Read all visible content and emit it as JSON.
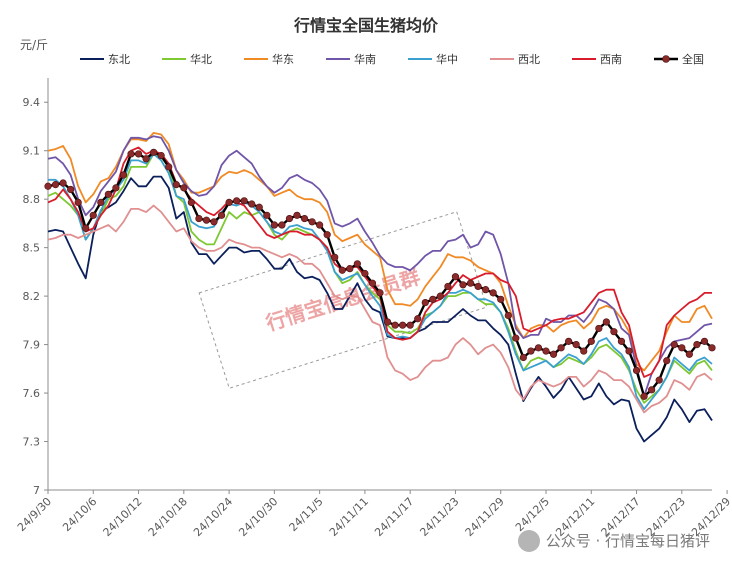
{
  "chart_data": {
    "type": "line",
    "title": "行情宝全国生猪均价",
    "ylabel": "元/斤",
    "ylim": [
      7.0,
      9.55
    ],
    "yticks": [
      7,
      7.3,
      7.6,
      7.9,
      8.2,
      8.5,
      8.8,
      9.1,
      9.4
    ],
    "xticks": [
      "24/9/30",
      "24/10/6",
      "24/10/12",
      "24/10/18",
      "24/10/24",
      "24/10/30",
      "24/11/5",
      "24/11/11",
      "24/11/17",
      "24/11/23",
      "24/11/29",
      "24/12/5",
      "24/12/11",
      "24/12/17",
      "24/12/23",
      "24/12/29"
    ],
    "x_start": "24/9/30",
    "legend_position": "top",
    "grid": false,
    "series": [
      {
        "name": "东北",
        "color": "#0b1f5c",
        "values": [
          8.6,
          8.61,
          8.6,
          8.5,
          8.4,
          8.31,
          8.58,
          8.73,
          8.75,
          8.78,
          8.85,
          8.93,
          8.88,
          8.88,
          8.94,
          8.94,
          8.87,
          8.68,
          8.72,
          8.53,
          8.46,
          8.46,
          8.4,
          8.45,
          8.5,
          8.5,
          8.47,
          8.48,
          8.48,
          8.43,
          8.37,
          8.37,
          8.43,
          8.35,
          8.31,
          8.32,
          8.3,
          8.22,
          8.12,
          8.12,
          8.2,
          8.28,
          8.18,
          8.12,
          8.1,
          7.95,
          7.94,
          7.94,
          7.94,
          7.98,
          8.0,
          8.04,
          8.04,
          8.04,
          8.08,
          8.12,
          8.08,
          8.05,
          8.05,
          8.0,
          7.96,
          7.9,
          7.72,
          7.55,
          7.63,
          7.7,
          7.64,
          7.57,
          7.62,
          7.7,
          7.63,
          7.56,
          7.58,
          7.66,
          7.58,
          7.53,
          7.56,
          7.55,
          7.38,
          7.3,
          7.34,
          7.38,
          7.45,
          7.56,
          7.5,
          7.42,
          7.49,
          7.5,
          7.43
        ]
      },
      {
        "name": "华北",
        "color": "#7ec832",
        "values": [
          8.82,
          8.84,
          8.8,
          8.76,
          8.7,
          8.55,
          8.62,
          8.7,
          8.8,
          8.82,
          8.88,
          9.0,
          9.0,
          9.0,
          9.08,
          9.06,
          9.0,
          8.82,
          8.78,
          8.6,
          8.55,
          8.52,
          8.52,
          8.62,
          8.72,
          8.68,
          8.72,
          8.7,
          8.72,
          8.66,
          8.58,
          8.55,
          8.6,
          8.62,
          8.6,
          8.58,
          8.55,
          8.5,
          8.35,
          8.28,
          8.3,
          8.35,
          8.27,
          8.22,
          8.18,
          8.02,
          7.98,
          7.98,
          7.97,
          8.0,
          8.08,
          8.1,
          8.14,
          8.2,
          8.2,
          8.22,
          8.22,
          8.18,
          8.15,
          8.15,
          8.1,
          8.0,
          7.86,
          7.74,
          7.8,
          7.82,
          7.8,
          7.76,
          7.78,
          7.82,
          7.8,
          7.78,
          7.82,
          7.88,
          7.9,
          7.86,
          7.82,
          7.74,
          7.62,
          7.54,
          7.58,
          7.62,
          7.7,
          7.8,
          7.76,
          7.72,
          7.78,
          7.8,
          7.74
        ]
      },
      {
        "name": "华东",
        "color": "#f08a24",
        "values": [
          9.1,
          9.11,
          9.13,
          9.05,
          8.88,
          8.78,
          8.83,
          8.91,
          8.93,
          9.0,
          9.1,
          9.17,
          9.17,
          9.16,
          9.21,
          9.2,
          9.14,
          8.98,
          8.92,
          8.84,
          8.84,
          8.86,
          8.88,
          8.94,
          8.97,
          8.96,
          8.98,
          8.96,
          8.92,
          8.88,
          8.82,
          8.84,
          8.86,
          8.82,
          8.8,
          8.8,
          8.78,
          8.72,
          8.58,
          8.54,
          8.56,
          8.58,
          8.52,
          8.48,
          8.44,
          8.24,
          8.15,
          8.15,
          8.14,
          8.18,
          8.26,
          8.32,
          8.38,
          8.46,
          8.44,
          8.44,
          8.42,
          8.38,
          8.36,
          8.34,
          8.28,
          8.14,
          8.02,
          7.94,
          8.0,
          8.02,
          8.02,
          7.98,
          8.02,
          8.04,
          8.05,
          8.0,
          8.04,
          8.12,
          8.14,
          8.12,
          8.06,
          7.98,
          7.78,
          7.74,
          7.8,
          7.86,
          7.98,
          8.08,
          8.04,
          8.04,
          8.12,
          8.14,
          8.06
        ]
      },
      {
        "name": "华南",
        "color": "#7055a8",
        "values": [
          9.05,
          9.06,
          9.02,
          8.95,
          8.8,
          8.7,
          8.75,
          8.85,
          8.91,
          8.97,
          9.1,
          9.18,
          9.18,
          9.17,
          9.19,
          9.18,
          9.1,
          8.98,
          8.9,
          8.85,
          8.82,
          8.83,
          8.88,
          9.01,
          9.07,
          9.1,
          9.06,
          9.02,
          8.94,
          8.88,
          8.84,
          8.87,
          8.93,
          8.95,
          8.92,
          8.9,
          8.86,
          8.79,
          8.65,
          8.63,
          8.65,
          8.68,
          8.6,
          8.53,
          8.45,
          8.4,
          8.38,
          8.38,
          8.36,
          8.4,
          8.45,
          8.48,
          8.48,
          8.54,
          8.55,
          8.58,
          8.5,
          8.52,
          8.6,
          8.58,
          8.46,
          8.28,
          8.0,
          7.94,
          7.96,
          7.96,
          8.06,
          8.04,
          8.04,
          8.08,
          8.08,
          8.04,
          8.1,
          8.18,
          8.16,
          8.12,
          8.0,
          7.96,
          7.76,
          7.58,
          7.72,
          7.8,
          7.88,
          7.92,
          7.93,
          7.94,
          7.98,
          8.02,
          8.03
        ]
      },
      {
        "name": "华中",
        "color": "#3aa0d0",
        "values": [
          8.92,
          8.92,
          8.88,
          8.8,
          8.7,
          8.55,
          8.62,
          8.73,
          8.82,
          8.86,
          8.92,
          9.04,
          9.04,
          9.02,
          9.08,
          9.04,
          8.96,
          8.82,
          8.8,
          8.66,
          8.63,
          8.62,
          8.63,
          8.72,
          8.77,
          8.76,
          8.78,
          8.76,
          8.72,
          8.66,
          8.6,
          8.58,
          8.63,
          8.64,
          8.62,
          8.61,
          8.55,
          8.48,
          8.35,
          8.3,
          8.32,
          8.34,
          8.27,
          8.2,
          8.14,
          7.96,
          7.94,
          7.95,
          7.94,
          7.98,
          8.06,
          8.1,
          8.14,
          8.22,
          8.22,
          8.24,
          8.22,
          8.18,
          8.18,
          8.16,
          8.1,
          7.98,
          7.84,
          7.74,
          7.76,
          7.78,
          7.8,
          7.76,
          7.8,
          7.84,
          7.82,
          7.78,
          7.84,
          7.92,
          7.94,
          7.88,
          7.84,
          7.76,
          7.58,
          7.5,
          7.56,
          7.62,
          7.7,
          7.82,
          7.78,
          7.74,
          7.8,
          7.82,
          7.78
        ]
      },
      {
        "name": "西北",
        "color": "#e09090",
        "values": [
          8.55,
          8.56,
          8.58,
          8.58,
          8.56,
          8.58,
          8.6,
          8.62,
          8.64,
          8.6,
          8.66,
          8.74,
          8.74,
          8.72,
          8.76,
          8.72,
          8.66,
          8.6,
          8.62,
          8.54,
          8.5,
          8.48,
          8.48,
          8.5,
          8.55,
          8.53,
          8.52,
          8.5,
          8.5,
          8.48,
          8.46,
          8.44,
          8.46,
          8.44,
          8.4,
          8.4,
          8.36,
          8.28,
          8.2,
          8.18,
          8.2,
          8.2,
          8.12,
          8.04,
          8.02,
          7.82,
          7.74,
          7.72,
          7.68,
          7.7,
          7.76,
          7.8,
          7.8,
          7.82,
          7.9,
          7.94,
          7.9,
          7.84,
          7.88,
          7.9,
          7.85,
          7.76,
          7.62,
          7.56,
          7.64,
          7.68,
          7.66,
          7.64,
          7.66,
          7.7,
          7.7,
          7.64,
          7.68,
          7.74,
          7.72,
          7.68,
          7.68,
          7.64,
          7.56,
          7.48,
          7.52,
          7.54,
          7.58,
          7.68,
          7.66,
          7.62,
          7.7,
          7.72,
          7.68
        ]
      },
      {
        "name": "西南",
        "color": "#d81c2c",
        "values": [
          8.78,
          8.8,
          8.86,
          8.8,
          8.72,
          8.6,
          8.62,
          8.7,
          8.76,
          8.86,
          9.02,
          9.1,
          9.12,
          9.08,
          9.1,
          9.08,
          9.02,
          8.9,
          8.86,
          8.8,
          8.76,
          8.72,
          8.7,
          8.74,
          8.79,
          8.78,
          8.76,
          8.7,
          8.64,
          8.58,
          8.56,
          8.58,
          8.6,
          8.6,
          8.58,
          8.58,
          8.55,
          8.5,
          8.4,
          8.36,
          8.38,
          8.38,
          8.32,
          8.26,
          8.2,
          7.98,
          7.94,
          7.93,
          7.94,
          7.98,
          8.1,
          8.16,
          8.18,
          8.22,
          8.28,
          8.33,
          8.3,
          8.32,
          8.34,
          8.34,
          8.3,
          8.28,
          8.2,
          8.0,
          7.98,
          8.0,
          8.02,
          8.05,
          8.06,
          8.06,
          8.08,
          8.1,
          8.16,
          8.22,
          8.24,
          8.24,
          8.1,
          8.02,
          7.82,
          7.7,
          7.72,
          7.8,
          8.02,
          8.08,
          8.12,
          8.16,
          8.18,
          8.22,
          8.22
        ]
      },
      {
        "name": "全国",
        "color": "#000000",
        "marker_color": "#8b2a2a",
        "values": [
          8.88,
          8.89,
          8.9,
          8.86,
          8.78,
          8.62,
          8.7,
          8.78,
          8.83,
          8.87,
          8.95,
          9.08,
          9.08,
          9.05,
          9.09,
          9.07,
          9.0,
          8.89,
          8.87,
          8.78,
          8.68,
          8.67,
          8.66,
          8.7,
          8.78,
          8.79,
          8.79,
          8.77,
          8.75,
          8.7,
          8.64,
          8.64,
          8.68,
          8.7,
          8.68,
          8.66,
          8.64,
          8.58,
          8.44,
          8.36,
          8.37,
          8.4,
          8.34,
          8.28,
          8.22,
          8.04,
          8.02,
          8.02,
          8.02,
          8.06,
          8.16,
          8.18,
          8.2,
          8.26,
          8.32,
          8.27,
          8.28,
          8.26,
          8.24,
          8.22,
          8.18,
          8.08,
          7.94,
          7.82,
          7.86,
          7.88,
          7.86,
          7.84,
          7.88,
          7.92,
          7.9,
          7.86,
          7.92,
          8.0,
          8.04,
          7.98,
          7.92,
          7.86,
          7.74,
          7.58,
          7.62,
          7.68,
          7.8,
          7.9,
          7.88,
          7.84,
          7.9,
          7.92,
          7.88
        ]
      }
    ]
  },
  "watermark": "行情宝信息会员群",
  "footer_text": "公众号 · 行情宝每日猪评"
}
